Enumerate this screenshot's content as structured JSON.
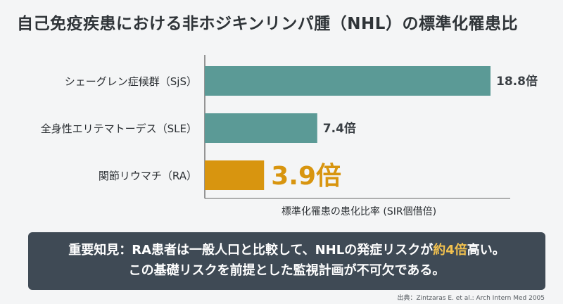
{
  "title": "自己免疫疾患における非ホジキンリンパ腫（NHL）の標準化罹患比",
  "chart_data": {
    "type": "bar",
    "orientation": "horizontal",
    "categories": [
      "シェーグレン症候群（SjS）",
      "全身性エリテマトーデス（SLE）",
      "関節リウマチ（RA）"
    ],
    "values": [
      18.8,
      7.4,
      3.9
    ],
    "value_labels": [
      "18.8倍",
      "7.4倍",
      "3.9倍"
    ],
    "bar_colors": [
      "#5b9a96",
      "#5b9a96",
      "#d8950f"
    ],
    "highlight_index": 2,
    "xlabel": "標準化罹患の患化比率 (SIR個借倍)",
    "xlim": [
      0,
      18.8
    ],
    "grid": false
  },
  "callout": {
    "line1_before": "重要知見：RA患者は一般人口と比較して、NHLの発症リスクが",
    "line1_highlight": "約4倍",
    "line1_after": "高い。",
    "line2": "この基礎リスクを前提とした監視計画が不可欠である。"
  },
  "source": "出典：Zintzaras E. et al.: Arch Intern Med 2005",
  "colors": {
    "background": "#f4f5f6",
    "bar": "#5b9a96",
    "highlight": "#d8950f",
    "callout_bg": "#3f4a55",
    "callout_highlight": "#f2c14e"
  }
}
